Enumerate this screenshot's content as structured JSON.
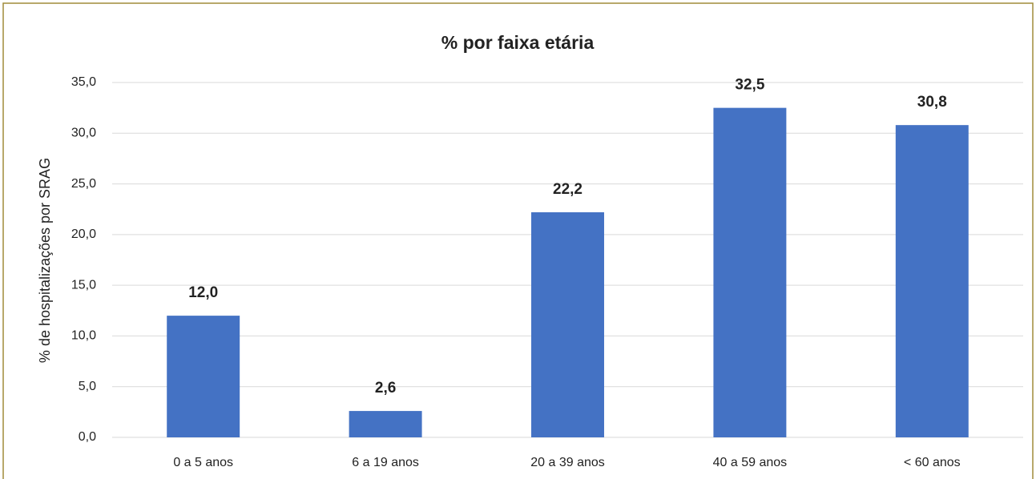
{
  "chart_data": {
    "type": "bar",
    "title": "% por faixa etária",
    "y_label": "% de hospitalizações por SRAG",
    "categories": [
      "0 a 5 anos",
      "6 a 19 anos",
      "20 a 39 anos",
      "40 a 59 anos",
      "< 60 anos"
    ],
    "values": [
      12.0,
      2.6,
      22.2,
      32.5,
      30.8
    ],
    "value_labels": [
      "12,0",
      "2,6",
      "22,2",
      "32,5",
      "30,8"
    ],
    "color": "#4472c4",
    "ylim": [
      0,
      35
    ],
    "yticks": [
      {
        "value": 0,
        "label": "0,0"
      },
      {
        "value": 5,
        "label": "5,0"
      },
      {
        "value": 10,
        "label": "10,0"
      },
      {
        "value": 15,
        "label": "15,0"
      },
      {
        "value": 20,
        "label": "20,0"
      },
      {
        "value": 25,
        "label": "25,0"
      },
      {
        "value": 30,
        "label": "30,0"
      },
      {
        "value": 35,
        "label": "35,0"
      }
    ],
    "grid": true
  }
}
